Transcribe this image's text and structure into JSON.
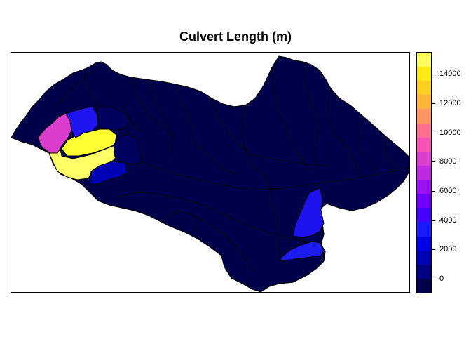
{
  "map": {
    "title": "Culvert Length (m)",
    "legend": {
      "ticks": [
        "0",
        "2000",
        "4000",
        "6000",
        "8000",
        "10000",
        "12000",
        "14000"
      ],
      "tick_values": [
        0,
        2000,
        4000,
        6000,
        8000,
        10000,
        12000,
        14000
      ],
      "range": [
        -1000,
        15500
      ],
      "colors": [
        "#00004B",
        "#000080",
        "#0000B4",
        "#0000E6",
        "#1919FF",
        "#4400FF",
        "#6F00FF",
        "#9A11F2",
        "#BE2AE2",
        "#DB3ECC",
        "#F352B2",
        "#FF6F8F",
        "#FF9561",
        "#FFB43A",
        "#FFD020",
        "#FFEB14",
        "#FFFF60"
      ]
    },
    "colors": {
      "low": "#00004B",
      "outline": "#000000",
      "yellow": "#FFFF33",
      "light_yellow": "#FFFF66",
      "magenta": "#DB3ECC",
      "blue": "#2015F0",
      "navy_dark": "#00005E",
      "mid_blue": "#0000B4",
      "bright_blue": "#1E12EE",
      "blue_south": "#1B1BF0"
    }
  }
}
